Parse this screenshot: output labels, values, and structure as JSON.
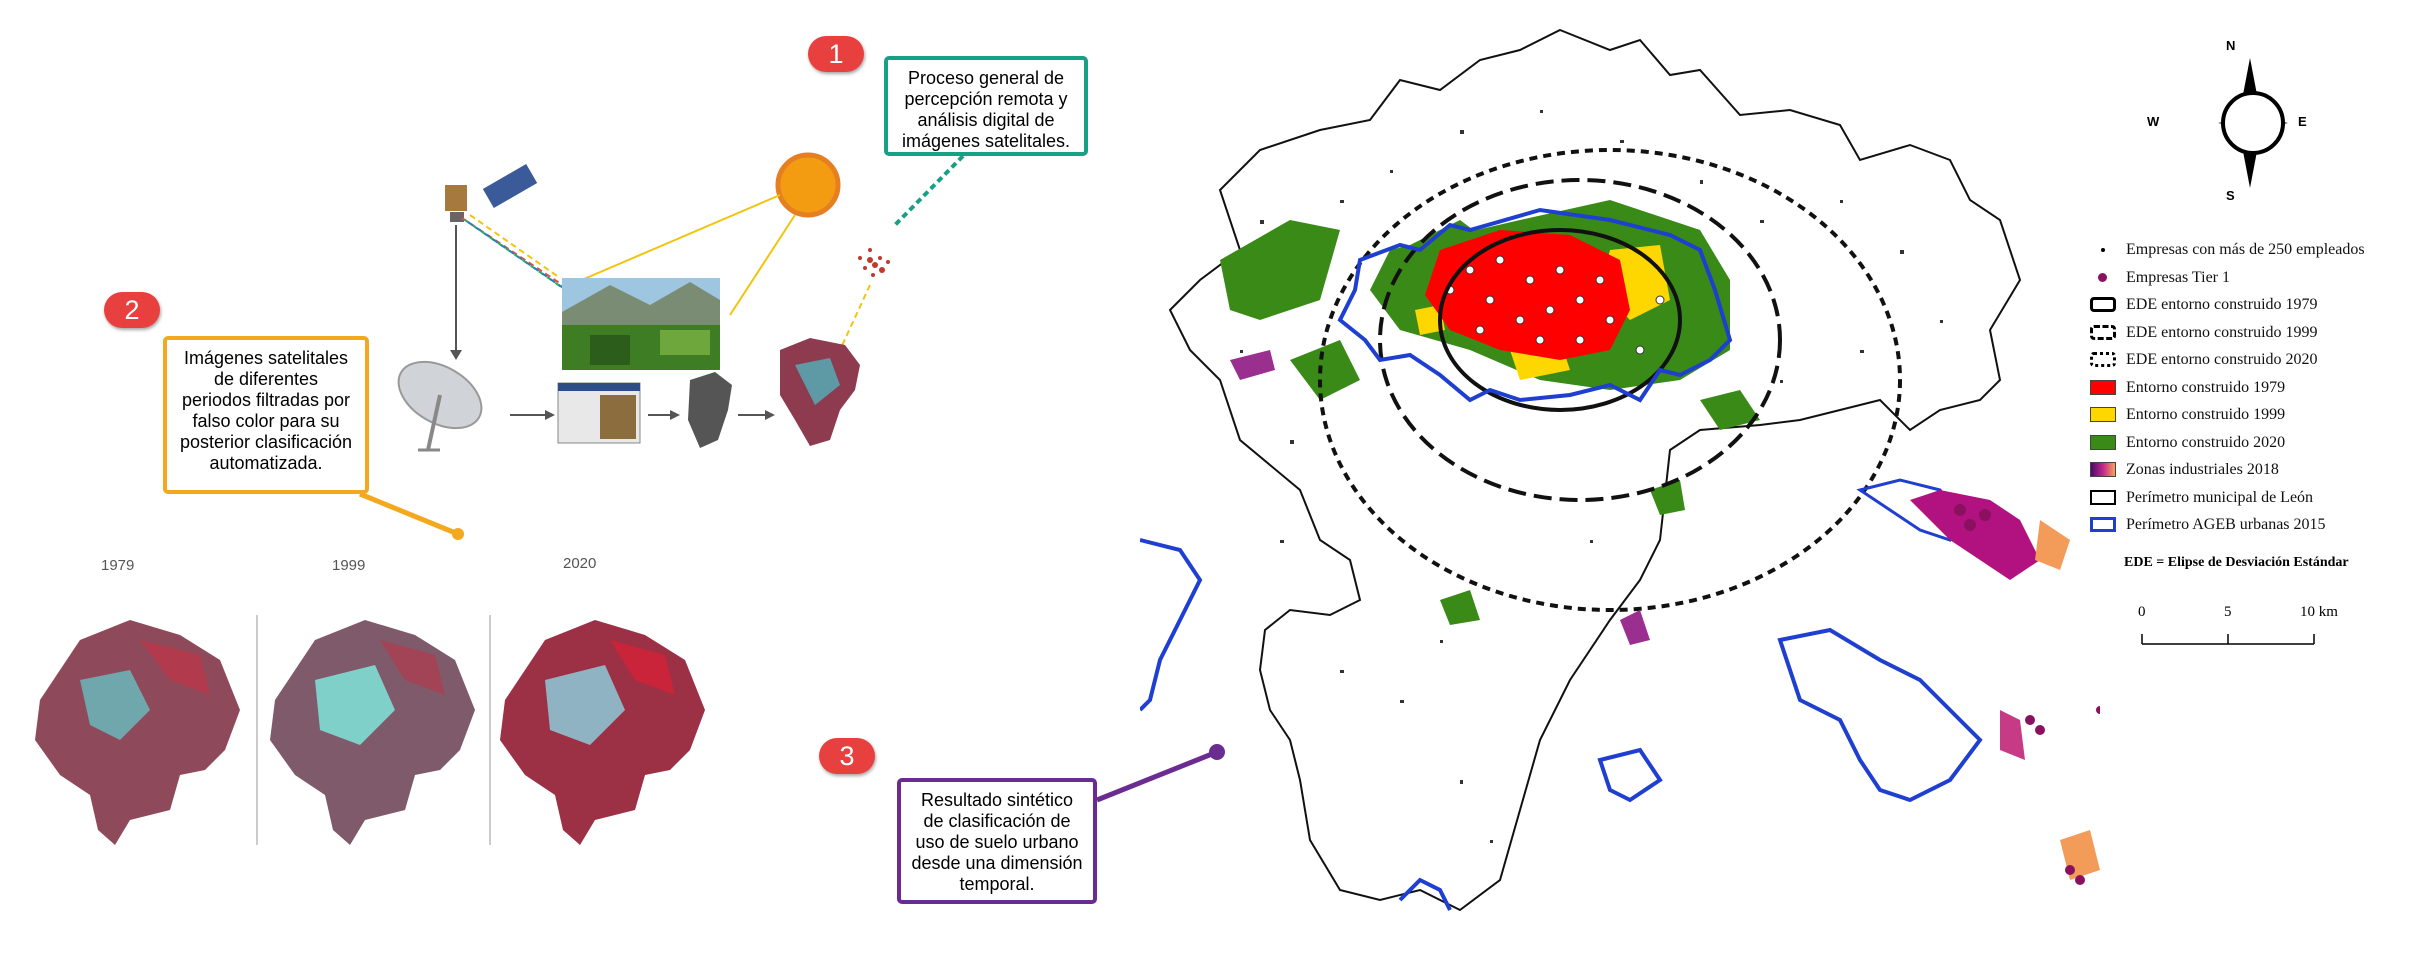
{
  "badges": {
    "one": "1",
    "two": "2",
    "three": "3"
  },
  "callouts": {
    "c1": [
      "Proceso general de",
      "percepción remota y",
      "análisis digital de",
      "imágenes satelitales."
    ],
    "c2": [
      "Imágenes satelitales",
      "de diferentes",
      "periodos filtradas por",
      "falso color para su",
      "posterior clasificación",
      "automatizada."
    ],
    "c3": [
      "Resultado sintético",
      "de clasificación de",
      "uso de suelo urbano",
      "desde una dimensión",
      "temporal."
    ]
  },
  "callout_colors": {
    "c1": "#16a085",
    "c2": "#f4a81d",
    "c3": "#6a2c91"
  },
  "years": [
    "1979",
    "1999",
    "2020"
  ],
  "compass": {
    "n": "N",
    "s": "S",
    "e": "E",
    "w": "W"
  },
  "legend": [
    {
      "label": "Empresas con más de 250 empleados",
      "symbol": "dot-small"
    },
    {
      "label": "Empresas Tier 1",
      "symbol": "dot-purple"
    },
    {
      "label": "EDE entorno construido 1979",
      "symbol": "ellipse-solid"
    },
    {
      "label": "EDE entorno construido 1999",
      "symbol": "ellipse-longdash"
    },
    {
      "label": "EDE entorno construido 2020",
      "symbol": "ellipse-dash"
    },
    {
      "label": "Entorno construido 1979",
      "symbol": "fill",
      "color": "#ff0000"
    },
    {
      "label": "Entorno construido 1999",
      "symbol": "fill",
      "color": "#ffd700"
    },
    {
      "label": "Entorno construido 2020",
      "symbol": "fill",
      "color": "#3a8a17"
    },
    {
      "label": "Zonas industriales 2018",
      "symbol": "gradient"
    },
    {
      "label": "Perímetro municipal de León",
      "symbol": "outline-black"
    },
    {
      "label": "Perímetro AGEB urbanas 2015",
      "symbol": "outline-blue"
    }
  ],
  "legend_note": "EDE = Elipse de Desviación Estándar",
  "scale": {
    "ticks": [
      "0",
      "5",
      "10 km"
    ]
  }
}
